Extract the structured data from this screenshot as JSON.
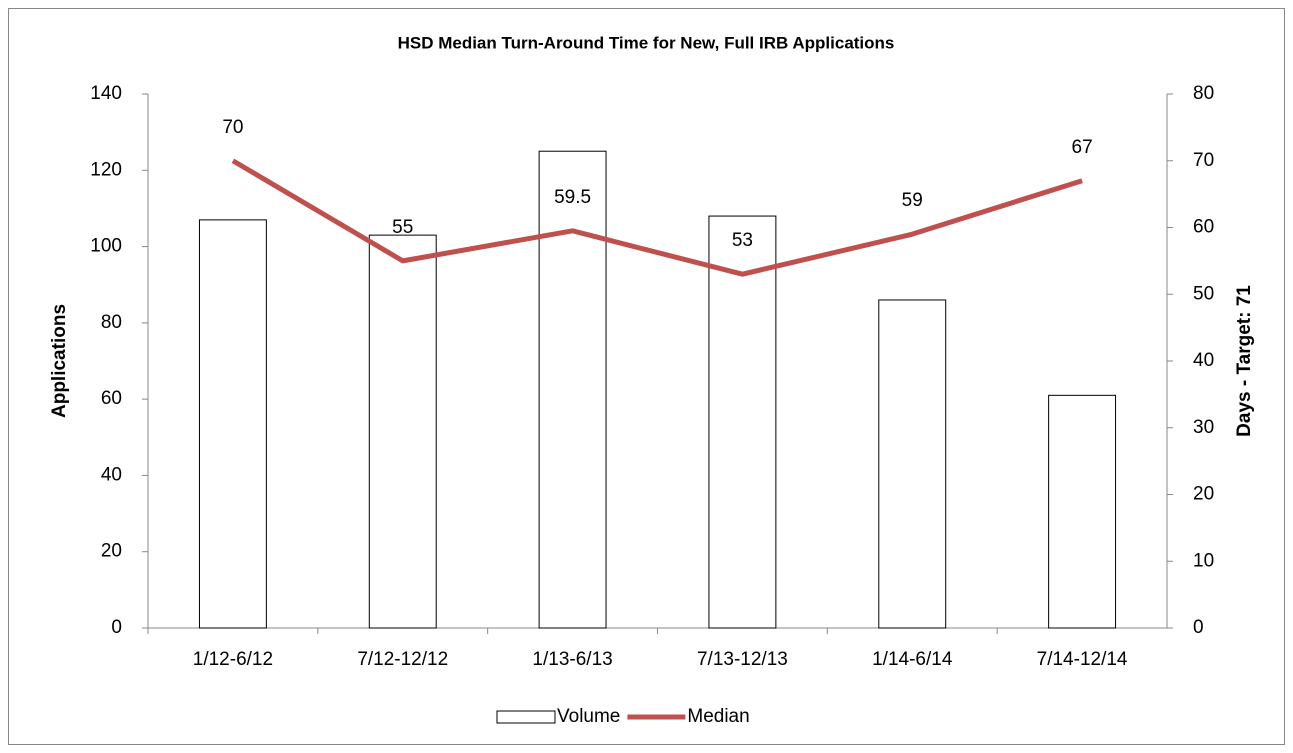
{
  "chart_data": {
    "type": "bar",
    "title": "HSD Median Turn-Around Time for New, Full IRB Applications",
    "y_label": "Applications",
    "y2_label": "Days - Target: 71",
    "categories": [
      "1/12-6/12",
      "7/12-12/12",
      "1/13-6/13",
      "7/13-12/13",
      "1/14-6/14",
      "7/14-12/14"
    ],
    "series": [
      {
        "name": "Volume",
        "type": "bar",
        "color": "#ffffff",
        "values": [
          107,
          103,
          125,
          108,
          86,
          61
        ]
      },
      {
        "name": "Median",
        "type": "line",
        "axis": "y2",
        "color": "#c0504d",
        "values": [
          70,
          55,
          59.5,
          53,
          59,
          67
        ]
      }
    ],
    "ylim": [
      0,
      140
    ],
    "yticks": [
      0,
      20,
      40,
      60,
      80,
      100,
      120,
      140
    ],
    "y2lim": [
      0,
      80
    ],
    "y2ticks": [
      0,
      10,
      20,
      30,
      40,
      50,
      60,
      70,
      80
    ],
    "grid": false,
    "legend": "bottom"
  }
}
